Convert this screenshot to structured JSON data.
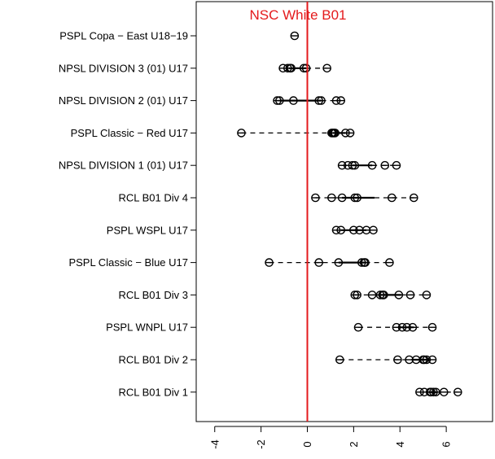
{
  "chart_data": {
    "type": "scatter",
    "annotation": "NSC White B01",
    "reference_x": 0,
    "reference_color": "#e41a1c",
    "xlim": [
      -4.8,
      8.0
    ],
    "x_ticks": [
      -4,
      -2,
      0,
      2,
      4,
      6
    ],
    "x_tick_labels": [
      "-4",
      "-2",
      "0",
      "2",
      "4",
      "6"
    ],
    "categories": [
      "PSPL Copa − East U18−19",
      "NPSL DIVISION 3 (01) U17",
      "NPSL DIVISION 2 (01) U17",
      "PSPL Classic − Red U17",
      "NPSL DIVISION 1 (01) U17",
      "RCL B01 Div 4",
      "PSPL WSPL U17",
      "PSPL Classic − Blue U17",
      "RCL B01 Div 3",
      "PSPL WNPL U17",
      "RCL B01 Div 2",
      "RCL B01 Div 1"
    ],
    "series": [
      {
        "values": [
          -0.55
        ],
        "q1": -0.55,
        "q3": -0.55
      },
      {
        "values": [
          -1.05,
          -0.85,
          -0.75,
          -0.7,
          -0.15,
          -0.05,
          0.85
        ],
        "q1": -0.8,
        "q3": -0.05
      },
      {
        "values": [
          -1.3,
          -1.2,
          -0.6,
          0.5,
          0.6,
          1.25,
          1.45
        ],
        "q1": -1.2,
        "q3": 0.6
      },
      {
        "values": [
          -2.85,
          1.05,
          1.1,
          1.15,
          1.2,
          1.65,
          1.85
        ],
        "q1": 1.1,
        "q3": 1.65
      },
      {
        "values": [
          1.5,
          1.75,
          1.95,
          2.05,
          2.8,
          3.35,
          3.85
        ],
        "q1": 1.95,
        "q3": 2.8
      },
      {
        "values": [
          0.35,
          1.05,
          1.5,
          2.05,
          2.15,
          3.65,
          4.6
        ],
        "q1": 1.5,
        "q3": 2.9
      },
      {
        "values": [
          1.25,
          1.45,
          2.0,
          2.25,
          2.55,
          2.85
        ],
        "q1": 1.45,
        "q3": 2.55
      },
      {
        "values": [
          -1.65,
          0.5,
          1.35,
          2.35,
          2.45,
          2.5,
          3.55
        ],
        "q1": 1.35,
        "q3": 2.5
      },
      {
        "values": [
          2.05,
          2.15,
          2.8,
          3.15,
          3.25,
          3.3,
          3.95,
          4.45,
          5.15
        ],
        "q1": 3.1,
        "q3": 4.05
      },
      {
        "values": [
          2.2,
          3.85,
          4.1,
          4.3,
          4.55,
          5.4
        ],
        "q1": 3.95,
        "q3": 4.6
      },
      {
        "values": [
          1.4,
          3.9,
          4.4,
          4.7,
          5.0,
          5.05,
          5.15,
          5.4
        ],
        "q1": 4.5,
        "q3": 5.1
      },
      {
        "values": [
          4.85,
          5.05,
          5.3,
          5.35,
          5.45,
          5.55,
          5.9,
          6.5
        ],
        "q1": 5.25,
        "q3": 5.6
      }
    ]
  }
}
